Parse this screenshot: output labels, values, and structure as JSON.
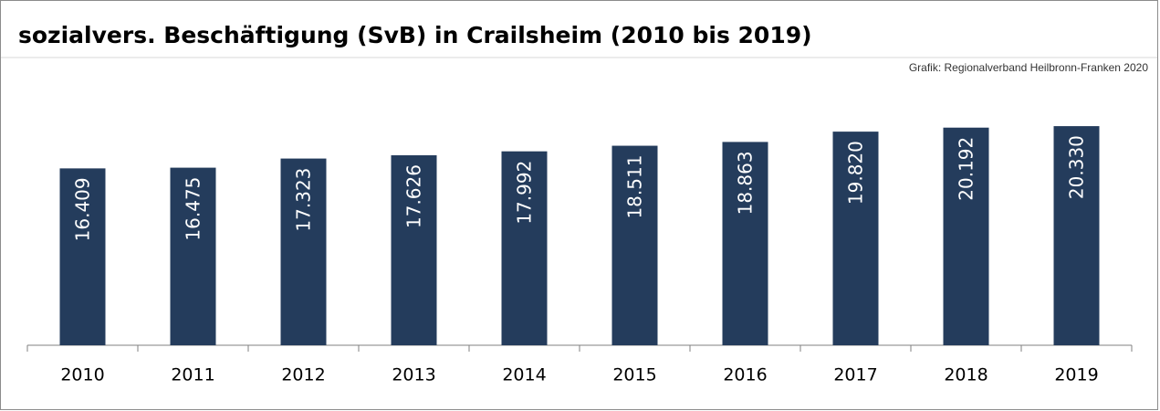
{
  "chart_data": {
    "type": "bar",
    "title": "sozialvers. Beschäftigung (SvB) in Crailsheim (2010 bis 2019)",
    "subtitle": "Grafik: Regionalverband Heilbronn-Franken 2020",
    "categories": [
      "2010",
      "2011",
      "2012",
      "2013",
      "2014",
      "2015",
      "2016",
      "2017",
      "2018",
      "2019"
    ],
    "values": [
      16409,
      16475,
      17323,
      17626,
      17992,
      18511,
      18863,
      19820,
      20192,
      20330
    ],
    "value_labels": [
      "16.409",
      "16.475",
      "17.323",
      "17.626",
      "17.992",
      "18.511",
      "18.863",
      "19.820",
      "20.192",
      "20.330"
    ],
    "color": "#243c5c",
    "ylim": [
      0,
      25000
    ]
  }
}
